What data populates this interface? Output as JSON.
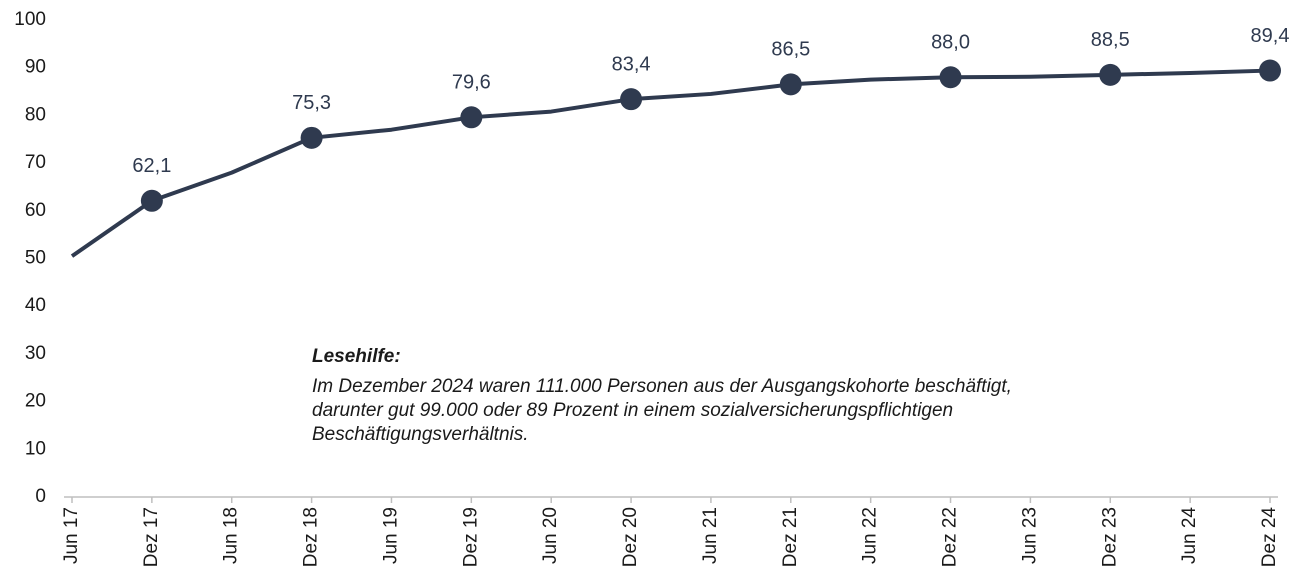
{
  "chart_data": {
    "type": "line",
    "categories": [
      "Jun 17",
      "Dez 17",
      "Jun 18",
      "Dez 18",
      "Jun 19",
      "Dez 19",
      "Jun 20",
      "Dez 20",
      "Jun 21",
      "Dez 21",
      "Jun 22",
      "Dez 22",
      "Jun 23",
      "Dez 23",
      "Jun 24",
      "Dez 24"
    ],
    "series": [
      {
        "color": "#2f3a4f",
        "values": [
          50.5,
          62.1,
          68.0,
          75.3,
          77.0,
          79.6,
          80.8,
          83.4,
          84.5,
          86.5,
          87.5,
          88.0,
          88.1,
          88.5,
          88.9,
          89.4
        ],
        "value_labels": [
          null,
          "62,1",
          null,
          "75,3",
          null,
          "79,6",
          null,
          "83,4",
          null,
          "86,5",
          null,
          "88,0",
          null,
          "88,5",
          null,
          "89,4"
        ]
      }
    ],
    "ylim": [
      0,
      100
    ],
    "yticks": [
      0,
      10,
      20,
      30,
      40,
      50,
      60,
      70,
      80,
      90,
      100
    ],
    "annotation": {
      "title": "Lesehilfe:",
      "lines": [
        "Im Dezember 2024 waren 111.000 Personen aus der Ausgangskohorte beschäftigt,",
        "darunter gut 99.000 oder 89 Prozent in einem sozialversicherungspflichtigen",
        "Beschäftigungsverhältnis."
      ]
    }
  }
}
